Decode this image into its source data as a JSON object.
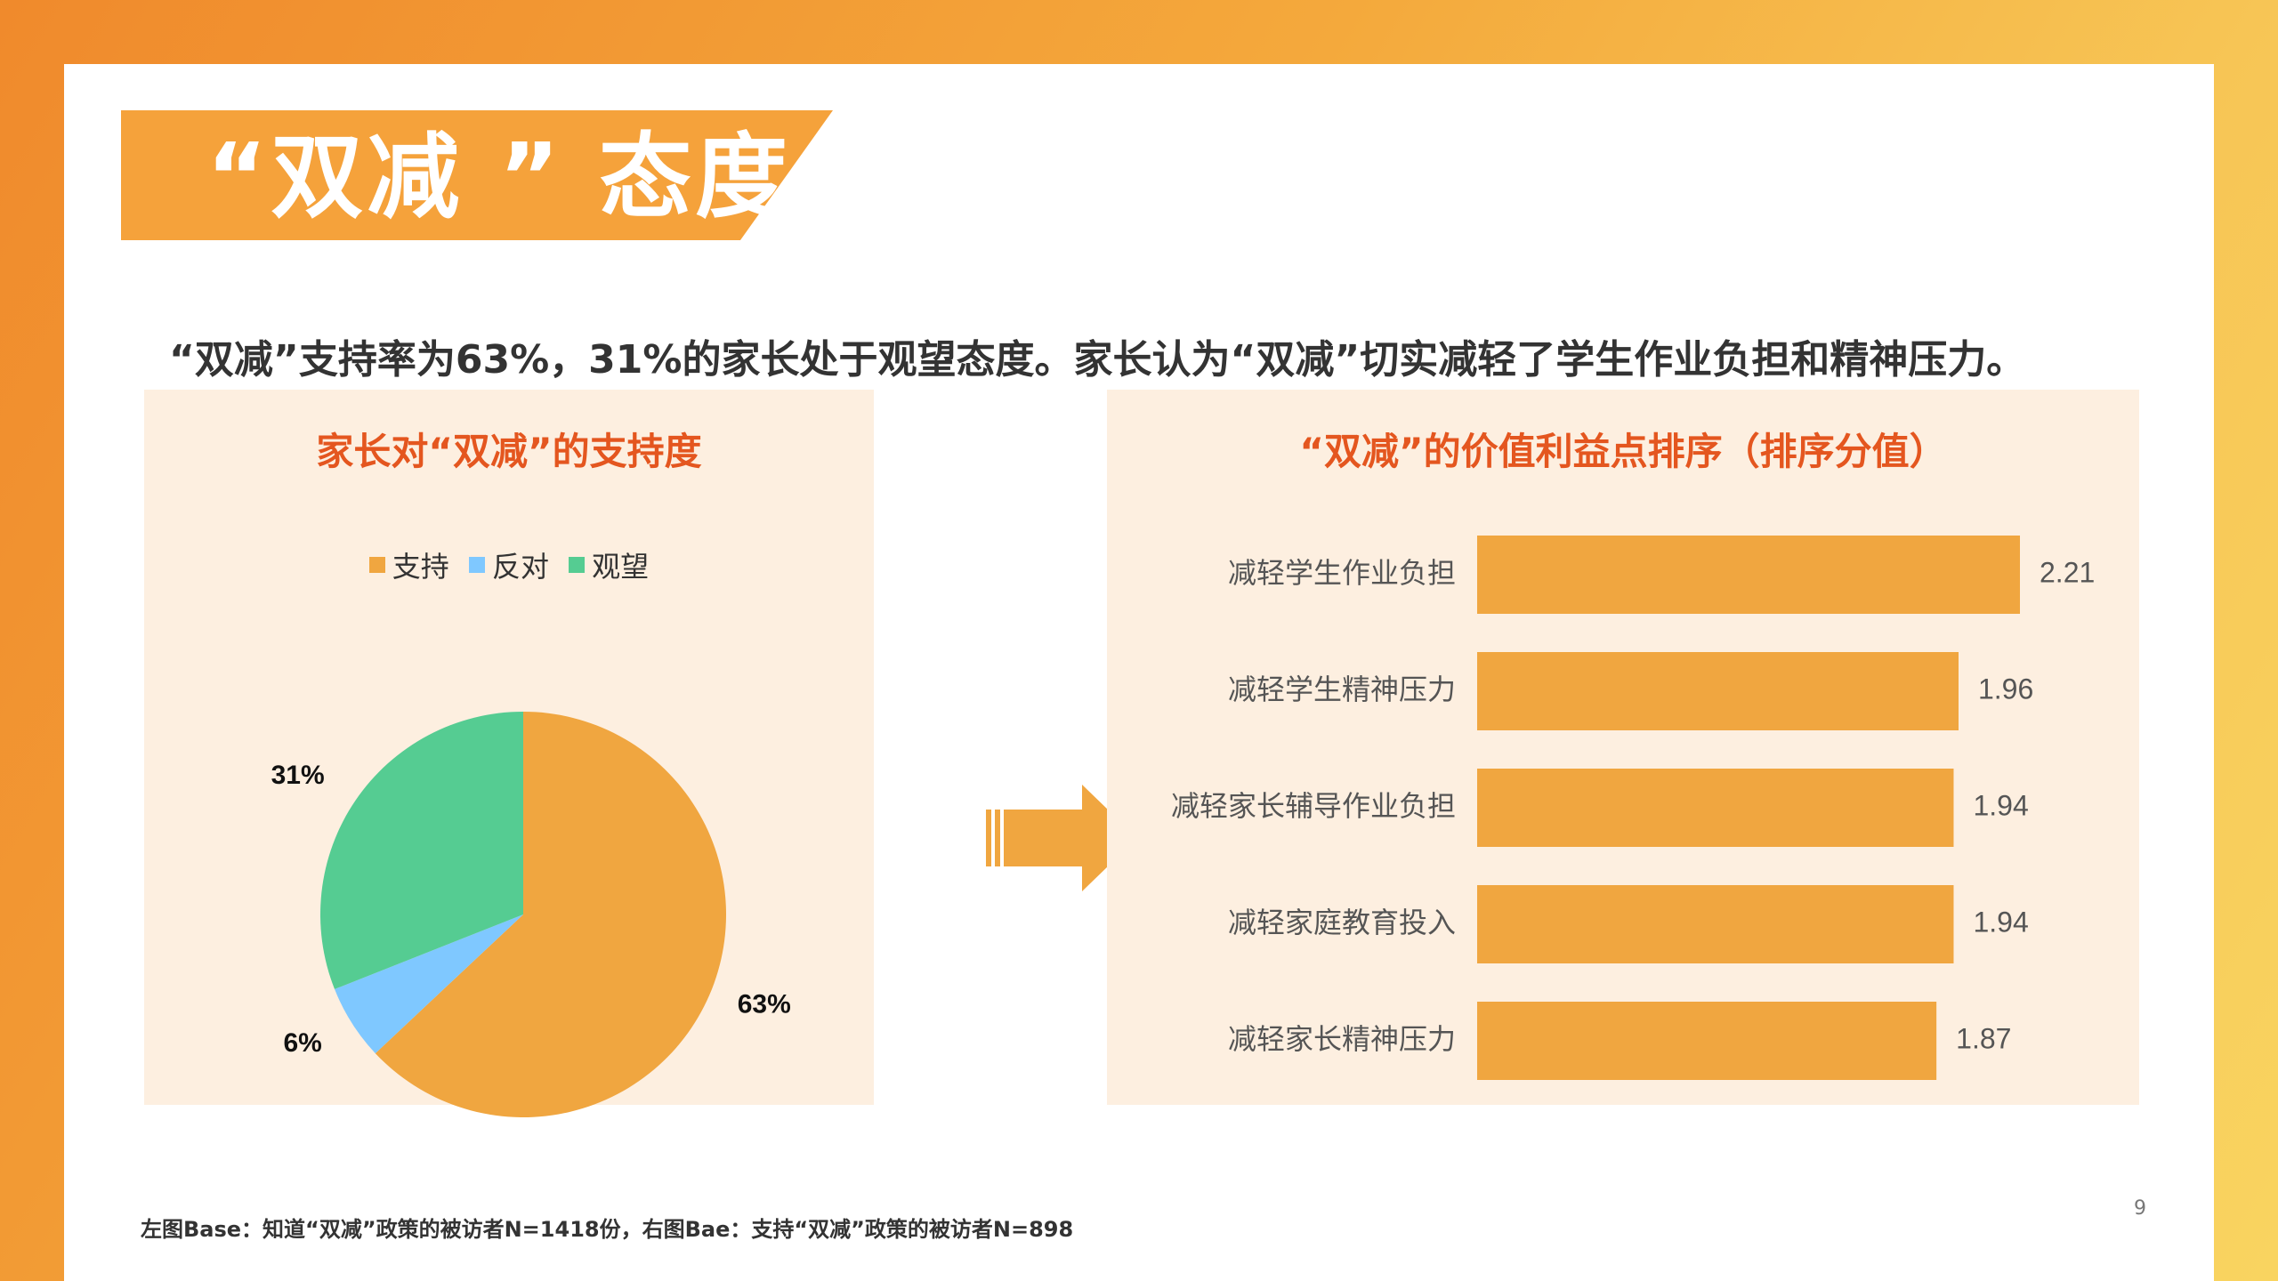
{
  "title": "“双减 ” 态度",
  "subtitle": "“双减”支持率为63%，31%的家长处于观望态度。家长认为“双减”切实减轻了学生作业负担和精神压力。",
  "footnote": "左图Base：知道“双减”政策的被访者N=1418份，右图Bae：支持“双减”政策的被访者N=898",
  "page_number": "9",
  "chart_data": [
    {
      "type": "pie",
      "title": "家长对“双减”的支持度",
      "legend_position": "top",
      "slices": [
        {
          "label": "支持",
          "value": 63,
          "display": "63%",
          "color": "#f0a640"
        },
        {
          "label": "反对",
          "value": 6,
          "display": "6%",
          "color": "#7fc8ff"
        },
        {
          "label": "观望",
          "value": 31,
          "display": "31%",
          "color": "#55cc92"
        }
      ]
    },
    {
      "type": "bar",
      "orientation": "horizontal",
      "title": "“双减”的价值利益点排序（排序分值）",
      "categories": [
        "减轻学生作业负担",
        "减轻学生精神压力",
        "减轻家长辅导作业负担",
        "减轻家庭教育投入",
        "减轻家长精神压力"
      ],
      "values": [
        2.21,
        1.96,
        1.94,
        1.94,
        1.87
      ],
      "value_labels": [
        "2.21",
        "1.96",
        "1.94",
        "1.94",
        "1.87"
      ],
      "color": "#f0a640"
    }
  ]
}
